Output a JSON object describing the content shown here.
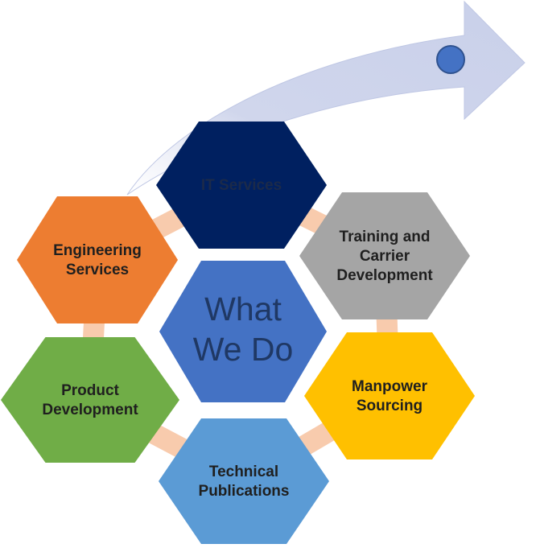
{
  "center": {
    "lines": [
      "What",
      "We Do"
    ],
    "fill": "#4472C4",
    "text_color": "#1F3864"
  },
  "services": [
    {
      "key": "it",
      "lines": [
        "IT Services"
      ],
      "fill": "#002060",
      "text_color": "#1B2A4A"
    },
    {
      "key": "training",
      "lines": [
        "Training and",
        "Carrier",
        "Development"
      ],
      "fill": "#A5A5A5",
      "text_color": "#1F1F1F"
    },
    {
      "key": "manpower",
      "lines": [
        "Manpower",
        "Sourcing"
      ],
      "fill": "#FFC000",
      "text_color": "#1F1F1F"
    },
    {
      "key": "technical",
      "lines": [
        "Technical",
        "Publications"
      ],
      "fill": "#5B9BD5",
      "text_color": "#1F1F1F"
    },
    {
      "key": "product",
      "lines": [
        "Product",
        "Development"
      ],
      "fill": "#70AD47",
      "text_color": "#1F1F1F"
    },
    {
      "key": "engineering",
      "lines": [
        "Engineering",
        "Services"
      ],
      "fill": "#ED7D31",
      "text_color": "#1F1F1F"
    }
  ],
  "colors": {
    "arrow_fill": "#D0D6EC",
    "arrow_stroke": "#BFC7E4",
    "dot_fill": "#4472C4",
    "dot_stroke": "#2F528F",
    "connector": "#F8CBAD"
  }
}
